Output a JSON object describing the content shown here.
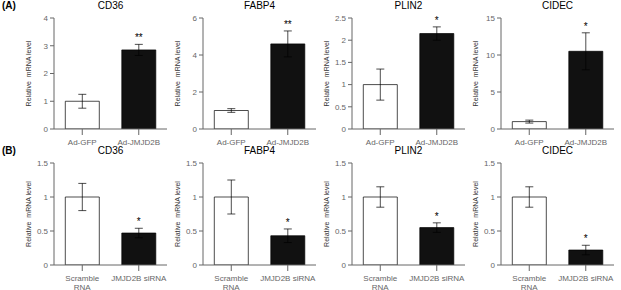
{
  "chart_data": [
    {
      "type": "bar",
      "title": "CD36",
      "panel_label": "(A)",
      "categories": [
        "Ad-GFP",
        "Ad-JMJD2B"
      ],
      "values": [
        1.0,
        2.85
      ],
      "errors": [
        0.25,
        0.2
      ],
      "colors": [
        "#ffffff",
        "#111111"
      ],
      "ylabel": "Relative  mRNA level",
      "ylim": [
        0,
        4
      ],
      "yticks": [
        0,
        1,
        2,
        3,
        4
      ],
      "annotations": [
        {
          "category": "Ad-JMJD2B",
          "text": "**"
        }
      ],
      "grid": false
    },
    {
      "type": "bar",
      "title": "FABP4",
      "categories": [
        "Ad-GFP",
        "Ad-JMJD2B"
      ],
      "values": [
        1.0,
        4.6
      ],
      "errors": [
        0.1,
        0.7
      ],
      "colors": [
        "#ffffff",
        "#111111"
      ],
      "ylabel": "Relative  mRNA level",
      "ylim": [
        0,
        6
      ],
      "yticks": [
        0,
        2,
        4,
        6
      ],
      "annotations": [
        {
          "category": "Ad-JMJD2B",
          "text": "**"
        }
      ],
      "grid": false
    },
    {
      "type": "bar",
      "title": "PLIN2",
      "categories": [
        "Ad-GFP",
        "Ad-JMJD2B"
      ],
      "values": [
        1.0,
        2.15
      ],
      "errors": [
        0.35,
        0.15
      ],
      "colors": [
        "#ffffff",
        "#111111"
      ],
      "ylabel": "Relative  mRNA level",
      "ylim": [
        0,
        2.5
      ],
      "yticks": [
        0,
        0.5,
        1,
        1.5,
        2,
        2.5
      ],
      "annotations": [
        {
          "category": "Ad-JMJD2B",
          "text": "*"
        }
      ],
      "grid": false
    },
    {
      "type": "bar",
      "title": "CIDEC",
      "categories": [
        "Ad-GFP",
        "Ad-JMJD2B"
      ],
      "values": [
        1.0,
        10.5
      ],
      "errors": [
        0.2,
        2.5
      ],
      "colors": [
        "#ffffff",
        "#111111"
      ],
      "ylabel": "Relative  mRNA level",
      "ylim": [
        0,
        15
      ],
      "yticks": [
        0,
        5,
        10,
        15
      ],
      "annotations": [
        {
          "category": "Ad-JMJD2B",
          "text": "*"
        }
      ],
      "grid": false
    },
    {
      "type": "bar",
      "title": "CD36",
      "panel_label": "(B)",
      "categories": [
        "Scramble\nRNA",
        "JMJD2B siRNA"
      ],
      "values": [
        1.0,
        0.47
      ],
      "errors": [
        0.2,
        0.07
      ],
      "colors": [
        "#ffffff",
        "#111111"
      ],
      "ylabel": "Relative  mRNA level",
      "ylim": [
        0,
        1.5
      ],
      "yticks": [
        0,
        0.5,
        1,
        1.5
      ],
      "annotations": [
        {
          "category": "JMJD2B siRNA",
          "text": "*"
        }
      ],
      "grid": false
    },
    {
      "type": "bar",
      "title": "FABP4",
      "categories": [
        "Scramble\nRNA",
        "JMJD2B siRNA"
      ],
      "values": [
        1.0,
        0.43
      ],
      "errors": [
        0.25,
        0.1
      ],
      "colors": [
        "#ffffff",
        "#111111"
      ],
      "ylabel": "Relative  mRNA level",
      "ylim": [
        0,
        1.5
      ],
      "yticks": [
        0,
        0.5,
        1,
        1.5
      ],
      "annotations": [
        {
          "category": "JMJD2B siRNA",
          "text": "*"
        }
      ],
      "grid": false
    },
    {
      "type": "bar",
      "title": "PLIN2",
      "categories": [
        "Scramble\nRNA",
        "JMJD2B siRNA"
      ],
      "values": [
        1.0,
        0.55
      ],
      "errors": [
        0.15,
        0.07
      ],
      "colors": [
        "#ffffff",
        "#111111"
      ],
      "ylabel": "Relative  mRNA level",
      "ylim": [
        0,
        1.5
      ],
      "yticks": [
        0,
        0.5,
        1,
        1.5
      ],
      "annotations": [
        {
          "category": "JMJD2B siRNA",
          "text": "*"
        }
      ],
      "grid": false
    },
    {
      "type": "bar",
      "title": "CIDEC",
      "categories": [
        "Scramble\nRNA",
        "JMJD2B siRNA"
      ],
      "values": [
        1.0,
        0.22
      ],
      "errors": [
        0.15,
        0.07
      ],
      "colors": [
        "#ffffff",
        "#111111"
      ],
      "ylabel": "Relative  mRNA level",
      "ylim": [
        0,
        1.5
      ],
      "yticks": [
        0,
        0.5,
        1,
        1.5
      ],
      "annotations": [
        {
          "category": "JMJD2B siRNA",
          "text": "*"
        }
      ],
      "grid": false
    }
  ]
}
